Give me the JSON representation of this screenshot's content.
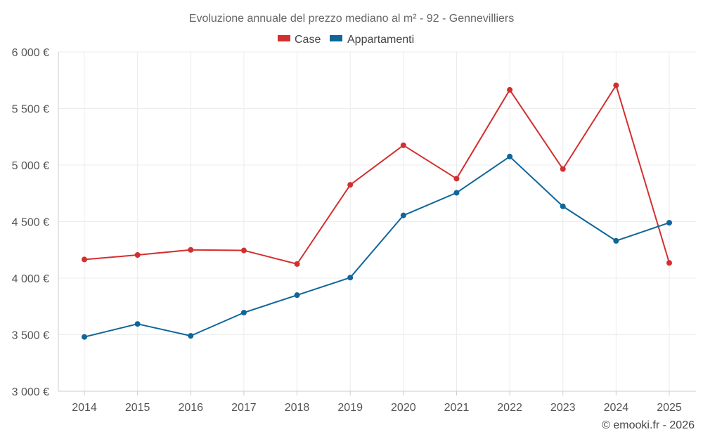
{
  "chart_data": {
    "type": "line",
    "title": "Evoluzione annuale del prezzo mediano al m² - 92 - Gennevilliers",
    "xlabel": "",
    "ylabel": "",
    "categories": [
      "2014",
      "2015",
      "2016",
      "2017",
      "2018",
      "2019",
      "2020",
      "2021",
      "2022",
      "2023",
      "2024",
      "2025"
    ],
    "ylim": [
      3000,
      6000
    ],
    "yticks": [
      3000,
      3500,
      4000,
      4500,
      5000,
      5500,
      6000
    ],
    "ytick_labels": [
      "3 000 €",
      "3 500 €",
      "4 000 €",
      "4 500 €",
      "5 000 €",
      "5 500 €",
      "6 000 €"
    ],
    "grid": true,
    "legend_position": "top-center",
    "series": [
      {
        "name": "Case",
        "color": "#d32f2f",
        "values": [
          4165,
          4205,
          4250,
          4245,
          4125,
          4825,
          5175,
          4880,
          5665,
          4965,
          5705,
          4135
        ]
      },
      {
        "name": "Appartamenti",
        "color": "#0e6699",
        "values": [
          3480,
          3595,
          3490,
          3695,
          3850,
          4005,
          4555,
          4755,
          5075,
          4635,
          4330,
          4490
        ]
      }
    ]
  },
  "footer": {
    "credit": "© emooki.fr - 2026"
  }
}
